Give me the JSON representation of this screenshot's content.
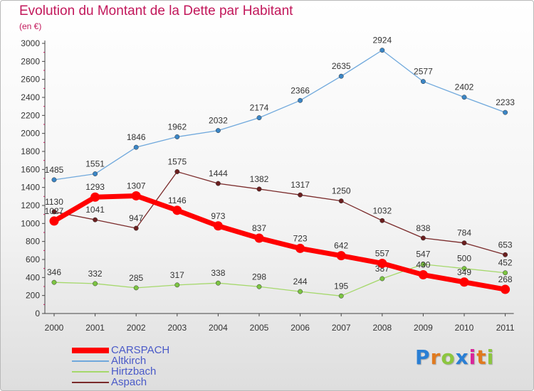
{
  "title": "Evolution du Montant de la Dette par Habitant",
  "subtitle": "(en €)",
  "logo": {
    "text": "Proxiti",
    "colors": [
      "#2a7fd4",
      "#e07a1f",
      "#8cc63f",
      "#2a7fd4",
      "#d9259a",
      "#e07a1f",
      "#8cc63f"
    ]
  },
  "chart_data": {
    "type": "line",
    "x": [
      "2000",
      "2001",
      "2002",
      "2003",
      "2004",
      "2005",
      "2006",
      "2007",
      "2008",
      "2009",
      "2010",
      "2011"
    ],
    "ylim": [
      0,
      3000
    ],
    "yticks": [
      0,
      200,
      400,
      600,
      800,
      1000,
      1200,
      1400,
      1600,
      1800,
      2000,
      2200,
      2400,
      2600,
      2800,
      3000
    ],
    "grid": false,
    "legend_position": "bottom-left",
    "series": [
      {
        "name": "Altkirch",
        "color": "#6fa8dc",
        "marker": "#3b86c6",
        "width": 1.3,
        "values": [
          1485,
          1551,
          1846,
          1962,
          2032,
          2174,
          2366,
          2635,
          2924,
          2577,
          2402,
          2233
        ]
      },
      {
        "name": "Aspach",
        "color": "#7a2a2a",
        "marker": "#6b1f1f",
        "width": 1.3,
        "values": [
          1130,
          1041,
          947,
          1575,
          1444,
          1382,
          1317,
          1250,
          1032,
          838,
          784,
          653
        ]
      },
      {
        "name": "Hirtzbach",
        "color": "#a5d86b",
        "marker": "#7cc542",
        "width": 1.3,
        "values": [
          346,
          332,
          285,
          317,
          338,
          298,
          244,
          195,
          387,
          547,
          500,
          452
        ]
      },
      {
        "name": "CARSPACH",
        "color": "#ff0000",
        "marker": "#ff0000",
        "width": 7,
        "values": [
          1027,
          1293,
          1307,
          1146,
          973,
          837,
          723,
          642,
          557,
          430,
          349,
          268
        ]
      }
    ],
    "legend_order": [
      "CARSPACH",
      "Altkirch",
      "Hirtzbach",
      "Aspach"
    ]
  }
}
